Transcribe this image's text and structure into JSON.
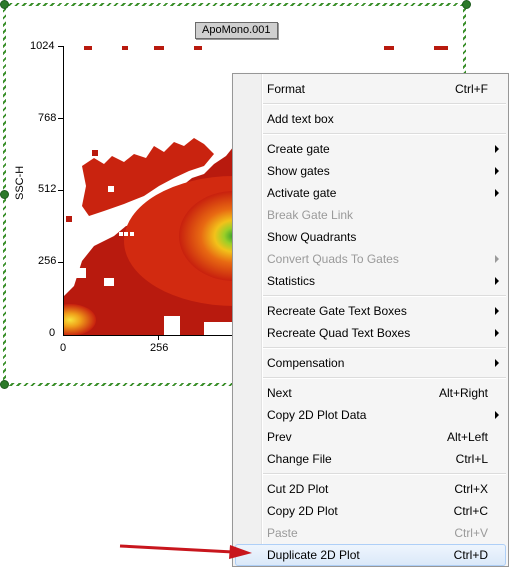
{
  "plot": {
    "title": "ApoMono.001",
    "ylabel": "SSC-H",
    "y_ticks": [
      "1024",
      "768",
      "512",
      "256",
      "0"
    ],
    "x_ticks": [
      "0",
      "256"
    ],
    "colors": {
      "frame": "#3a8f2a",
      "dense": "#2f9e2f",
      "mid": "#f2c21a",
      "low": "#e03010",
      "base": "#b81a0e"
    }
  },
  "menu": {
    "items": [
      {
        "label": "Format",
        "shortcut": "Ctrl+F",
        "submenu": false,
        "enabled": true
      },
      {
        "label": "Add text box",
        "shortcut": "",
        "submenu": false,
        "enabled": true
      },
      {
        "label": "Create gate",
        "shortcut": "",
        "submenu": true,
        "enabled": true
      },
      {
        "label": "Show gates",
        "shortcut": "",
        "submenu": true,
        "enabled": true
      },
      {
        "label": "Activate gate",
        "shortcut": "",
        "submenu": true,
        "enabled": true
      },
      {
        "label": "Break Gate Link",
        "shortcut": "",
        "submenu": false,
        "enabled": false
      },
      {
        "label": "Show Quadrants",
        "shortcut": "",
        "submenu": false,
        "enabled": true
      },
      {
        "label": "Convert Quads To Gates",
        "shortcut": "",
        "submenu": true,
        "enabled": false
      },
      {
        "label": "Statistics",
        "shortcut": "",
        "submenu": true,
        "enabled": true
      },
      {
        "label": "Recreate Gate Text Boxes",
        "shortcut": "",
        "submenu": true,
        "enabled": true
      },
      {
        "label": "Recreate Quad Text Boxes",
        "shortcut": "",
        "submenu": true,
        "enabled": true
      },
      {
        "label": "Compensation",
        "shortcut": "",
        "submenu": true,
        "enabled": true
      },
      {
        "label": "Next",
        "shortcut": "Alt+Right",
        "submenu": false,
        "enabled": true
      },
      {
        "label": "Copy 2D Plot Data",
        "shortcut": "",
        "submenu": true,
        "enabled": true
      },
      {
        "label": "Prev",
        "shortcut": "Alt+Left",
        "submenu": false,
        "enabled": true
      },
      {
        "label": "Change File",
        "shortcut": "Ctrl+L",
        "submenu": false,
        "enabled": true
      },
      {
        "label": "Cut 2D Plot",
        "shortcut": "Ctrl+X",
        "submenu": false,
        "enabled": true
      },
      {
        "label": "Copy 2D Plot",
        "shortcut": "Ctrl+C",
        "submenu": false,
        "enabled": true
      },
      {
        "label": "Paste",
        "shortcut": "Ctrl+V",
        "submenu": false,
        "enabled": false
      },
      {
        "label": "Duplicate 2D Plot",
        "shortcut": "Ctrl+D",
        "submenu": false,
        "enabled": true,
        "highlighted": true
      }
    ]
  },
  "annotation": {
    "arrow_color": "#c8161d"
  }
}
